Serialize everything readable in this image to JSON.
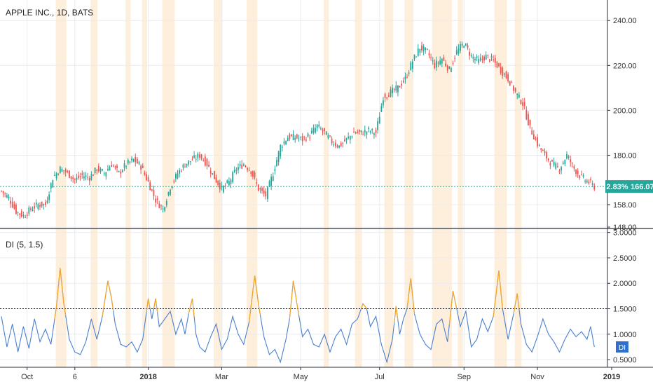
{
  "header": {
    "ticker_label": "APPLE INC., 1D, BATS"
  },
  "indicator": {
    "label": "DI (5, 1.5)",
    "badge": "DI"
  },
  "price_badge": {
    "pct": "2.83%",
    "price": "166.07"
  },
  "colors": {
    "up": "#26a69a",
    "down": "#ef5350",
    "di_line": "#4a7fd0",
    "di_high": "#f5a623",
    "highlight": "#fde9d0",
    "threshold": "#000000",
    "badge": "#26a69a",
    "grid": "#e8ecf0"
  },
  "chart_data": [
    {
      "type": "candlestick",
      "title": "APPLE INC., 1D, BATS",
      "x_tick_labels": [
        "Oct",
        "6",
        "2018",
        "Mar",
        "May",
        "Jul",
        "Sep",
        "Nov",
        "2019"
      ],
      "y_ticks": [
        148,
        158,
        180,
        200,
        220,
        240
      ],
      "y_tick_labels": [
        "148.00",
        "158.00",
        "180.00",
        "200.00",
        "220.00",
        "240.00"
      ],
      "ylim": [
        148,
        246
      ],
      "last_price": 166.07,
      "change_pct": "2.83%",
      "close_anchors": [
        [
          0,
          164
        ],
        [
          4,
          161
        ],
        [
          8,
          155
        ],
        [
          12,
          153
        ],
        [
          16,
          156
        ],
        [
          20,
          158
        ],
        [
          24,
          158
        ],
        [
          28,
          170
        ],
        [
          32,
          174
        ],
        [
          36,
          172
        ],
        [
          40,
          169
        ],
        [
          44,
          171
        ],
        [
          48,
          170
        ],
        [
          52,
          174
        ],
        [
          56,
          172
        ],
        [
          60,
          176
        ],
        [
          64,
          172
        ],
        [
          68,
          176
        ],
        [
          72,
          178
        ],
        [
          76,
          175
        ],
        [
          80,
          168
        ],
        [
          84,
          160
        ],
        [
          88,
          156
        ],
        [
          92,
          166
        ],
        [
          96,
          172
        ],
        [
          100,
          176
        ],
        [
          104,
          178
        ],
        [
          108,
          180
        ],
        [
          112,
          176
        ],
        [
          116,
          170
        ],
        [
          120,
          165
        ],
        [
          124,
          168
        ],
        [
          128,
          174
        ],
        [
          132,
          176
        ],
        [
          136,
          173
        ],
        [
          140,
          165
        ],
        [
          144,
          162
        ],
        [
          148,
          172
        ],
        [
          152,
          184
        ],
        [
          156,
          188
        ],
        [
          160,
          188
        ],
        [
          164,
          187
        ],
        [
          168,
          189
        ],
        [
          172,
          193
        ],
        [
          176,
          190
        ],
        [
          180,
          186
        ],
        [
          184,
          184
        ],
        [
          188,
          187
        ],
        [
          192,
          190
        ],
        [
          196,
          190
        ],
        [
          200,
          191
        ],
        [
          204,
          190
        ],
        [
          208,
          206
        ],
        [
          212,
          208
        ],
        [
          216,
          210
        ],
        [
          220,
          214
        ],
        [
          224,
          222
        ],
        [
          228,
          228
        ],
        [
          232,
          226
        ],
        [
          236,
          220
        ],
        [
          240,
          223
        ],
        [
          244,
          218
        ],
        [
          248,
          226
        ],
        [
          252,
          230
        ],
        [
          256,
          224
        ],
        [
          260,
          222
        ],
        [
          264,
          224
        ],
        [
          268,
          222
        ],
        [
          272,
          218
        ],
        [
          276,
          214
        ],
        [
          280,
          208
        ],
        [
          284,
          203
        ],
        [
          288,
          192
        ],
        [
          292,
          185
        ],
        [
          296,
          180
        ],
        [
          300,
          176
        ],
        [
          304,
          174
        ],
        [
          308,
          180
        ],
        [
          312,
          174
        ],
        [
          316,
          170
        ],
        [
          320,
          168
        ],
        [
          323,
          166
        ]
      ]
    },
    {
      "type": "line",
      "title": "DI (5, 1.5)",
      "y_ticks": [
        0.5,
        1.0,
        1.5,
        2.0,
        2.5,
        3.0
      ],
      "y_tick_labels": [
        "0.5000",
        "1.0000",
        "1.5000",
        "2.0000",
        "2.5000",
        "3.0000"
      ],
      "ylim": [
        0.35,
        3.05
      ],
      "threshold": 1.5,
      "anchors": [
        [
          0,
          1.35
        ],
        [
          3,
          0.75
        ],
        [
          6,
          1.2
        ],
        [
          9,
          0.65
        ],
        [
          12,
          1.15
        ],
        [
          15,
          0.72
        ],
        [
          18,
          1.3
        ],
        [
          21,
          0.85
        ],
        [
          24,
          1.1
        ],
        [
          27,
          0.8
        ],
        [
          30,
          1.55
        ],
        [
          32,
          2.3
        ],
        [
          34,
          1.6
        ],
        [
          37,
          0.9
        ],
        [
          40,
          0.65
        ],
        [
          43,
          0.6
        ],
        [
          46,
          0.85
        ],
        [
          49,
          1.3
        ],
        [
          52,
          0.9
        ],
        [
          55,
          1.35
        ],
        [
          58,
          2.05
        ],
        [
          60,
          1.7
        ],
        [
          62,
          1.2
        ],
        [
          65,
          0.8
        ],
        [
          68,
          0.75
        ],
        [
          71,
          0.85
        ],
        [
          74,
          0.65
        ],
        [
          77,
          0.9
        ],
        [
          80,
          1.7
        ],
        [
          82,
          1.3
        ],
        [
          84,
          1.7
        ],
        [
          86,
          1.15
        ],
        [
          89,
          1.3
        ],
        [
          92,
          1.45
        ],
        [
          95,
          1.0
        ],
        [
          98,
          1.3
        ],
        [
          100,
          1.0
        ],
        [
          102,
          1.4
        ],
        [
          104,
          1.7
        ],
        [
          106,
          1.0
        ],
        [
          108,
          0.75
        ],
        [
          111,
          0.65
        ],
        [
          114,
          0.95
        ],
        [
          117,
          1.2
        ],
        [
          120,
          0.7
        ],
        [
          123,
          0.9
        ],
        [
          126,
          1.35
        ],
        [
          129,
          1.0
        ],
        [
          132,
          0.8
        ],
        [
          135,
          1.25
        ],
        [
          138,
          2.15
        ],
        [
          140,
          1.6
        ],
        [
          143,
          0.95
        ],
        [
          146,
          0.6
        ],
        [
          149,
          0.7
        ],
        [
          152,
          0.45
        ],
        [
          155,
          0.9
        ],
        [
          157,
          1.3
        ],
        [
          159,
          2.05
        ],
        [
          161,
          1.6
        ],
        [
          164,
          0.95
        ],
        [
          167,
          1.1
        ],
        [
          170,
          0.8
        ],
        [
          173,
          0.75
        ],
        [
          176,
          1.0
        ],
        [
          179,
          0.65
        ],
        [
          182,
          0.95
        ],
        [
          185,
          1.1
        ],
        [
          188,
          0.8
        ],
        [
          191,
          1.2
        ],
        [
          194,
          1.3
        ],
        [
          197,
          1.6
        ],
        [
          199,
          1.5
        ],
        [
          201,
          1.15
        ],
        [
          204,
          1.35
        ],
        [
          207,
          0.8
        ],
        [
          210,
          0.45
        ],
        [
          213,
          0.9
        ],
        [
          215,
          1.55
        ],
        [
          217,
          1.0
        ],
        [
          219,
          1.3
        ],
        [
          221,
          1.5
        ],
        [
          223,
          2.1
        ],
        [
          225,
          1.4
        ],
        [
          228,
          1.0
        ],
        [
          231,
          0.8
        ],
        [
          234,
          0.7
        ],
        [
          237,
          1.2
        ],
        [
          240,
          1.3
        ],
        [
          243,
          0.85
        ],
        [
          246,
          1.85
        ],
        [
          248,
          1.5
        ],
        [
          250,
          1.15
        ],
        [
          253,
          1.45
        ],
        [
          256,
          0.75
        ],
        [
          259,
          0.9
        ],
        [
          262,
          1.3
        ],
        [
          265,
          1.05
        ],
        [
          268,
          1.35
        ],
        [
          271,
          2.25
        ],
        [
          273,
          1.5
        ],
        [
          276,
          0.9
        ],
        [
          279,
          1.4
        ],
        [
          281,
          1.8
        ],
        [
          283,
          1.2
        ],
        [
          286,
          0.8
        ],
        [
          289,
          0.65
        ],
        [
          292,
          0.95
        ],
        [
          295,
          1.3
        ],
        [
          298,
          1.0
        ],
        [
          301,
          0.85
        ],
        [
          304,
          0.65
        ],
        [
          307,
          0.9
        ],
        [
          310,
          1.1
        ],
        [
          313,
          0.95
        ],
        [
          316,
          1.05
        ],
        [
          319,
          0.9
        ],
        [
          321,
          1.15
        ],
        [
          323,
          0.75
        ]
      ],
      "highlight_bars": [
        [
          30,
          35
        ],
        [
          49,
          52
        ],
        [
          68,
          70
        ],
        [
          77,
          79
        ],
        [
          88,
          94
        ],
        [
          116,
          120
        ],
        [
          134,
          139
        ],
        [
          176,
          178
        ],
        [
          193,
          196
        ],
        [
          209,
          213
        ],
        [
          220,
          224
        ],
        [
          235,
          245
        ],
        [
          249,
          251
        ],
        [
          269,
          275
        ],
        [
          280,
          283
        ]
      ]
    }
  ]
}
